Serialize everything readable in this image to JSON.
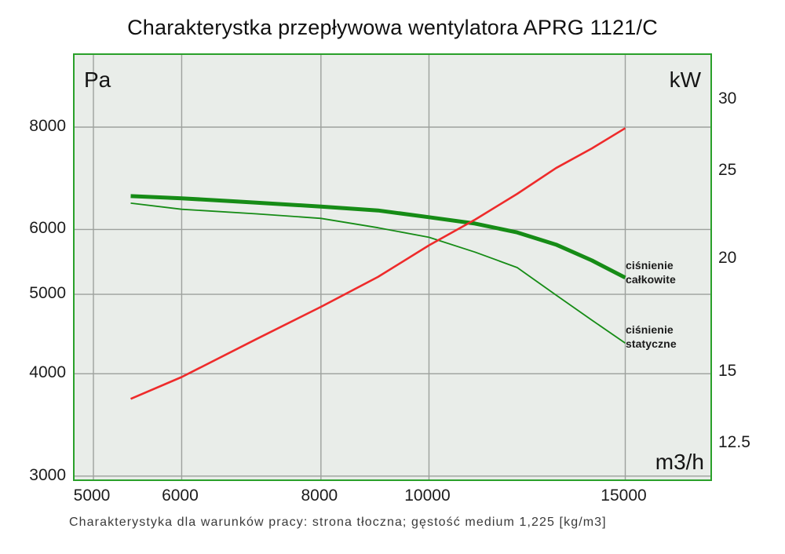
{
  "title": "Charakterystka przepływowa wentylatora APRG 1121/C",
  "caption": "Charakterystyka dla warunków pracy: strona tłoczna; gęstość medium 1,225 [kg/m3]",
  "axes": {
    "left_unit": "Pa",
    "right_unit": "kW",
    "x_unit": "m3/h"
  },
  "colors": {
    "plot_background": "#e9ede9",
    "plot_border": "#2aa02a",
    "gridline": "#9da19d",
    "curve_green": "#168c16",
    "curve_red": "#ee2b2b",
    "text": "#1c1c1c"
  },
  "chart_data": {
    "type": "line",
    "title": "Charakterystka przepływowa wentylatora APRG 1121/C",
    "xlabel": "m3/h",
    "ylabel_left": "Pa",
    "ylabel_right": "kW",
    "x_scale": "log",
    "y_scale": "log",
    "grid": true,
    "x_ticks": [
      5000,
      6000,
      8000,
      10000,
      15000
    ],
    "y_left_ticks": [
      8000,
      6000,
      5000,
      4000,
      3000
    ],
    "y_right_ticks": [
      30,
      25,
      20,
      15,
      12.5
    ],
    "x_range": [
      4810,
      17900
    ],
    "y_left_range": [
      2950,
      9770
    ],
    "y_right_range": [
      11.1,
      33.8
    ],
    "x": [
      5400,
      6000,
      7000,
      8000,
      9000,
      10000,
      11000,
      12000,
      13000,
      14000,
      15000
    ],
    "series": [
      {
        "name": "cisnienie-calkowite",
        "label": "ciśnienie całkowite",
        "axis": "left",
        "unit": "Pa",
        "color": "#168c16",
        "stroke_width": 5,
        "values": [
          6590,
          6550,
          6470,
          6400,
          6330,
          6210,
          6100,
          5950,
          5750,
          5500,
          5240
        ]
      },
      {
        "name": "cisnienie-statyczne",
        "label": "ciśnienie statyczne",
        "axis": "left",
        "unit": "Pa",
        "color": "#168c16",
        "stroke_width": 1.8,
        "values": [
          6460,
          6350,
          6270,
          6190,
          6030,
          5870,
          5630,
          5390,
          4990,
          4650,
          4360
        ]
      },
      {
        "name": "moc",
        "label": "",
        "axis": "right",
        "unit": "kW",
        "color": "#ee2b2b",
        "stroke_width": 2.6,
        "values": [
          14.0,
          14.8,
          16.3,
          17.7,
          19.1,
          20.7,
          22.1,
          23.6,
          25.2,
          26.5,
          27.9
        ]
      }
    ]
  }
}
